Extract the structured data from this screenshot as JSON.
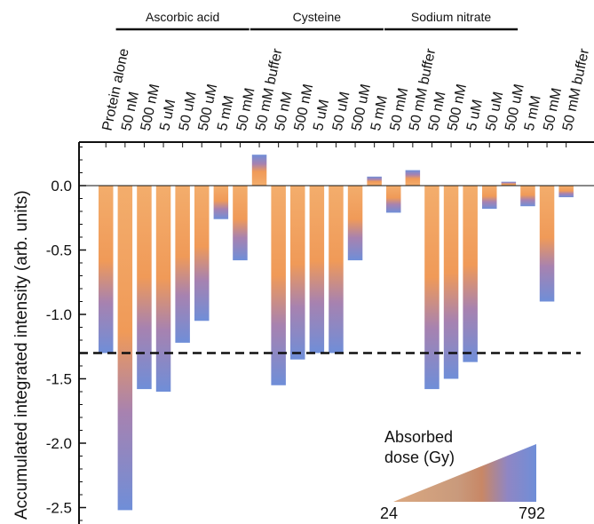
{
  "chart_data": {
    "type": "bar",
    "title": "",
    "xlabel": "",
    "ylabel": "Accumulated integrated intensity (arb. units)",
    "ylim": [
      -2.62,
      0.35
    ],
    "yticks": [
      0.0,
      -0.5,
      -1.0,
      -1.5,
      -2.0,
      -2.5
    ],
    "ytick_labels": [
      "0.0",
      "-0.5",
      "-1.0",
      "-1.5",
      "-2.0",
      "-2.5"
    ],
    "reference_line": -1.3,
    "groups": [
      {
        "label": "Ascorbic acid",
        "first": 1,
        "last": 7
      },
      {
        "label": "Cysteine",
        "first": 8,
        "last": 14
      },
      {
        "label": "Sodium nitrate",
        "first": 15,
        "last": 21
      }
    ],
    "categories": [
      "Protein alone",
      "50 nM",
      "500 nM",
      "5 uM",
      "50 uM",
      "500 uM",
      "5 mM",
      "50 mM",
      "50 mM buffer",
      "50 nM",
      "500 nM",
      "5 uM",
      "50 uM",
      "500 uM",
      "5 mM",
      "50 mM",
      "50 mM buffer",
      "50 nM",
      "500 nM",
      "5 uM",
      "50 uM",
      "500 uM",
      "5 mM",
      "50 mM",
      "50 mM buffer"
    ],
    "values": [
      -1.3,
      -2.52,
      -1.58,
      -1.6,
      -1.22,
      -1.05,
      -0.26,
      -0.58,
      0.24,
      -1.55,
      -1.35,
      -1.3,
      -1.3,
      -0.58,
      0.07,
      -0.21,
      0.12,
      -1.58,
      -1.5,
      -1.37,
      -0.18,
      0.03,
      -0.16,
      -0.9,
      -0.09
    ],
    "colorbar": {
      "title_line1": "Absorbed",
      "title_line2": "dose (Gy)",
      "min_label": "24",
      "max_label": "792",
      "colors": [
        "#f0ae6a",
        "#8a7fc4",
        "#6f8ed8"
      ]
    }
  }
}
